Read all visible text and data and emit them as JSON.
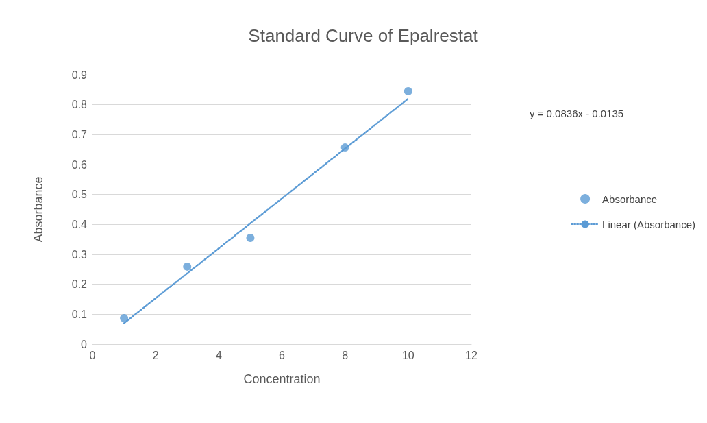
{
  "chart_data": {
    "type": "scatter",
    "title": "Standard Curve of Epalrestat",
    "xlabel": "Concentration",
    "ylabel": "Absorbance",
    "annotations": [
      "y = 0.0836x - 0.0135"
    ],
    "series": [
      {
        "name": "Absorbance",
        "type": "scatter",
        "color": "#5b9bd5",
        "marker": "circle",
        "x": [
          1,
          3,
          5,
          8,
          10
        ],
        "values": [
          0.087,
          0.259,
          0.355,
          0.657,
          0.845
        ]
      },
      {
        "name": "Linear (Absorbance)",
        "type": "line",
        "color": "#5b9bd5",
        "line_style": "dotted",
        "marker": "none",
        "x": [
          1,
          10
        ],
        "values": [
          0.07,
          0.82
        ]
      }
    ],
    "xlim": [
      0,
      12
    ],
    "xticks": [
      0,
      2,
      4,
      6,
      8,
      10,
      12
    ],
    "ylim": [
      0,
      0.9
    ],
    "yticks": [
      0,
      0.1,
      0.2,
      0.3,
      0.4,
      0.5,
      0.6,
      0.7,
      0.8,
      0.9
    ],
    "grid": "y",
    "legend": "right"
  }
}
